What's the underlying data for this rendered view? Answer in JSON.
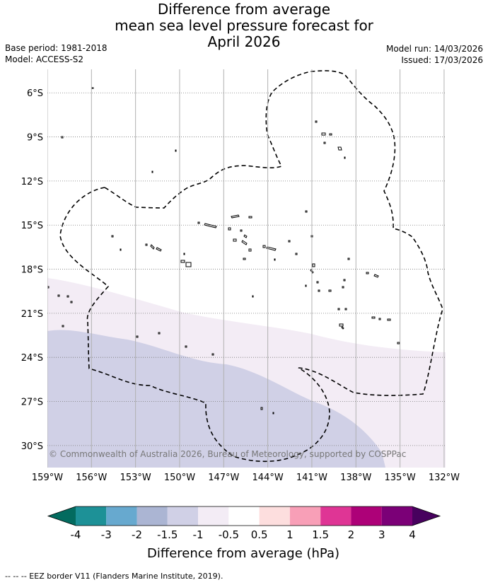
{
  "title_lines": [
    "Difference from average",
    "mean sea level pressure forecast for",
    "April 2026"
  ],
  "base_period": "Base period: 1981-2018",
  "model": "Model: ACCESS-S2",
  "model_run": "Model run: 14/03/2026",
  "issued": "Issued: 17/03/2026",
  "copyright": "© Commonwealth of Australia 2026, Bureau of Meteorology, supported by COSPPac",
  "footnote": "--  --  -- EEZ border V11 (Flanders Marine Institute, 2019).",
  "map": {
    "lon_range": [
      -159,
      -131.9
    ],
    "lat_range": [
      -31.5,
      -4.4
    ],
    "lon_ticks": [
      "159°W",
      "156°W",
      "153°W",
      "150°W",
      "147°W",
      "144°W",
      "141°W",
      "138°W",
      "135°W",
      "132°W"
    ],
    "lat_ticks": [
      "6°S",
      "9°S",
      "12°S",
      "15°S",
      "18°S",
      "21°S",
      "24°S",
      "27°S",
      "30°S"
    ],
    "anomaly_fill": [
      {
        "range": "-1.5 to -1",
        "color": "#d0d0e6"
      },
      {
        "range": "-1 to -0.5",
        "color": "#f3ecf5"
      }
    ]
  },
  "colorbar": {
    "title": "Difference from average (hPa)",
    "labels": [
      "-4",
      "-3",
      "-2",
      "-1.5",
      "-1",
      "-0.5",
      "0.5",
      "1",
      "1.5",
      "2",
      "3",
      "4"
    ],
    "colors": [
      "#1d9197",
      "#67a9cf",
      "#abb5d3",
      "#d0d0e6",
      "#f3ecf5",
      "#ffffff",
      "#fddede",
      "#f89fb7",
      "#df3595",
      "#ad0178",
      "#7b0077"
    ],
    "under_color": "#036b5f",
    "over_color": "#47015e"
  }
}
